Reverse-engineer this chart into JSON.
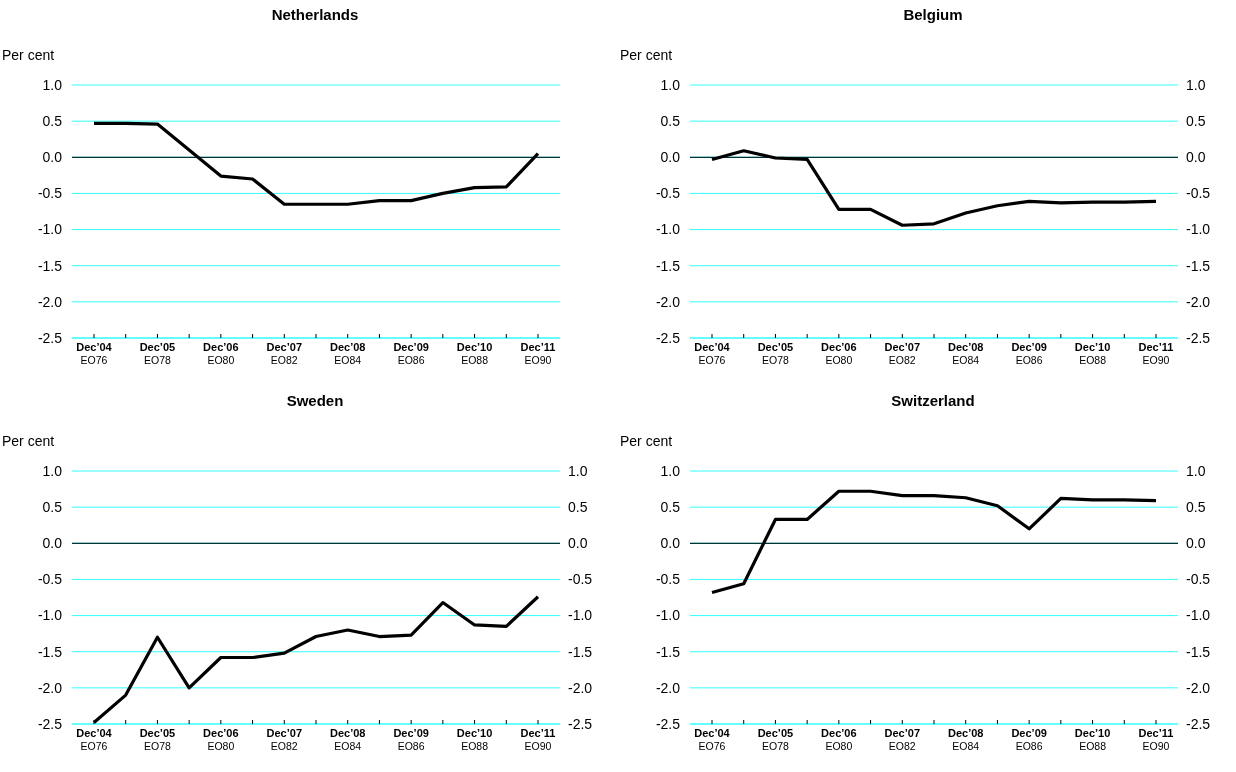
{
  "chart_data": [
    {
      "type": "line",
      "title": "Netherlands",
      "ylabel": "Per cent",
      "categories": [
        "Dec’04\nEO76",
        null,
        "Dec’05\nEO78",
        null,
        "Dec’06\nEO80",
        null,
        "Dec’07\nEO82",
        null,
        "Dec’08\nEO84",
        null,
        "Dec’09\nEO86",
        null,
        "Dec’10\nEO88",
        null,
        "Dec’11\nEO90"
      ],
      "series": [
        {
          "color": "#000000",
          "values": [
            0.47,
            0.47,
            0.46,
            0.1,
            -0.26,
            -0.3,
            -0.65,
            -0.65,
            -0.65,
            -0.6,
            -0.6,
            -0.5,
            -0.42,
            -0.41,
            0.05
          ]
        }
      ],
      "ylim": [
        -2.5,
        1.0
      ],
      "yticks": [
        {
          "value": -2.5,
          "label": "-2.5"
        },
        {
          "value": -2,
          "label": "-2.0"
        },
        {
          "value": -1.5,
          "label": "-1.5"
        },
        {
          "value": -1,
          "label": "-1.0"
        },
        {
          "value": -0.5,
          "label": "-0.5"
        },
        {
          "value": 0,
          "label": "0.0"
        },
        {
          "value": 0.5,
          "label": "0.5"
        },
        {
          "value": 1,
          "label": "1.0"
        }
      ],
      "grid": "y",
      "ref_lines": [
        {
          "axis": "y",
          "value": 0,
          "color": "#003333"
        }
      ]
    },
    {
      "type": "line",
      "title": "Belgium",
      "ylabel": "Per cent",
      "categories": [
        "Dec’04\nEO76",
        null,
        "Dec’05\nEO78",
        null,
        "Dec’06\nEO80",
        null,
        "Dec’07\nEO82",
        null,
        "Dec’08\nEO84",
        null,
        "Dec’09\nEO86",
        null,
        "Dec’10\nEO88",
        null,
        "Dec’11\nEO90"
      ],
      "series": [
        {
          "color": "#000000",
          "values": [
            -0.03,
            0.09,
            -0.01,
            -0.03,
            -0.72,
            -0.72,
            -0.94,
            -0.92,
            -0.77,
            -0.67,
            -0.61,
            -0.63,
            -0.62,
            -0.62,
            -0.61
          ]
        }
      ],
      "ylim": [
        -2.5,
        1.0
      ],
      "yticks": [
        {
          "value": -2.5,
          "label": "-2.5"
        },
        {
          "value": -2,
          "label": "-2.0"
        },
        {
          "value": -1.5,
          "label": "-1.5"
        },
        {
          "value": -1,
          "label": "-1.0"
        },
        {
          "value": -0.5,
          "label": "-0.5"
        },
        {
          "value": 0,
          "label": "0.0"
        },
        {
          "value": 0.5,
          "label": "0.5"
        },
        {
          "value": 1,
          "label": "1.0"
        }
      ],
      "y2lim": [
        -2.5,
        1.0
      ],
      "y2ticks": [
        {
          "value": -2.5,
          "label": "-2.5"
        },
        {
          "value": -2,
          "label": "-2.0"
        },
        {
          "value": -1.5,
          "label": "-1.5"
        },
        {
          "value": -1,
          "label": "-1.0"
        },
        {
          "value": -0.5,
          "label": "-0.5"
        },
        {
          "value": 0,
          "label": "0.0"
        },
        {
          "value": 0.5,
          "label": "0.5"
        },
        {
          "value": 1,
          "label": "1.0"
        }
      ],
      "grid": "y",
      "ref_lines": [
        {
          "axis": "y",
          "value": 0,
          "color": "#003333"
        }
      ]
    },
    {
      "type": "line",
      "title": "Sweden",
      "ylabel": "Per cent",
      "categories": [
        "Dec’04\nEO76",
        null,
        "Dec’05\nEO78",
        null,
        "Dec’06\nEO80",
        null,
        "Dec’07\nEO82",
        null,
        "Dec’08\nEO84",
        null,
        "Dec’09\nEO86",
        null,
        "Dec’10\nEO88",
        null,
        "Dec’11\nEO90"
      ],
      "series": [
        {
          "color": "#000000",
          "values": [
            -2.48,
            -2.1,
            -1.3,
            -2.0,
            -1.58,
            -1.58,
            -1.52,
            -1.29,
            -1.2,
            -1.29,
            -1.27,
            -0.82,
            -1.13,
            -1.15,
            -0.74
          ]
        }
      ],
      "ylim": [
        -2.5,
        1.0
      ],
      "yticks": [
        {
          "value": -2.5,
          "label": "-2.5"
        },
        {
          "value": -2,
          "label": "-2.0"
        },
        {
          "value": -1.5,
          "label": "-1.5"
        },
        {
          "value": -1,
          "label": "-1.0"
        },
        {
          "value": -0.5,
          "label": "-0.5"
        },
        {
          "value": 0,
          "label": "0.0"
        },
        {
          "value": 0.5,
          "label": "0.5"
        },
        {
          "value": 1,
          "label": "1.0"
        }
      ],
      "y2lim": [
        -2.5,
        1.0
      ],
      "y2ticks": [
        {
          "value": -2.5,
          "label": "-2.5"
        },
        {
          "value": -2,
          "label": "-2.0"
        },
        {
          "value": -1.5,
          "label": "-1.5"
        },
        {
          "value": -1,
          "label": "-1.0"
        },
        {
          "value": -0.5,
          "label": "-0.5"
        },
        {
          "value": 0,
          "label": "0.0"
        },
        {
          "value": 0.5,
          "label": "0.5"
        },
        {
          "value": 1,
          "label": "1.0"
        }
      ],
      "grid": "y",
      "ref_lines": [
        {
          "axis": "y",
          "value": 0,
          "color": "#003333"
        }
      ]
    },
    {
      "type": "line",
      "title": "Switzerland",
      "ylabel": "Per cent",
      "categories": [
        "Dec’04\nEO76",
        null,
        "Dec’05\nEO78",
        null,
        "Dec’06\nEO80",
        null,
        "Dec’07\nEO82",
        null,
        "Dec’08\nEO84",
        null,
        "Dec’09\nEO86",
        null,
        "Dec’10\nEO88",
        null,
        "Dec’11\nEO90"
      ],
      "series": [
        {
          "color": "#000000",
          "values": [
            -0.68,
            -0.56,
            0.33,
            0.33,
            0.72,
            0.72,
            0.66,
            0.66,
            0.63,
            0.52,
            0.2,
            0.62,
            0.6,
            0.6,
            0.59
          ]
        }
      ],
      "ylim": [
        -2.5,
        1.0
      ],
      "yticks": [
        {
          "value": -2.5,
          "label": "-2.5"
        },
        {
          "value": -2,
          "label": "-2.0"
        },
        {
          "value": -1.5,
          "label": "-1.5"
        },
        {
          "value": -1,
          "label": "-1.0"
        },
        {
          "value": -0.5,
          "label": "-0.5"
        },
        {
          "value": 0,
          "label": "0.0"
        },
        {
          "value": 0.5,
          "label": "0.5"
        },
        {
          "value": 1,
          "label": "1.0"
        }
      ],
      "y2lim": [
        -2.5,
        1.0
      ],
      "y2ticks": [
        {
          "value": -2.5,
          "label": "-2.5"
        },
        {
          "value": -2,
          "label": "-2.0"
        },
        {
          "value": -1.5,
          "label": "-1.5"
        },
        {
          "value": -1,
          "label": "-1.0"
        },
        {
          "value": -0.5,
          "label": "-0.5"
        },
        {
          "value": 0,
          "label": "0.0"
        },
        {
          "value": 0.5,
          "label": "0.5"
        },
        {
          "value": 1,
          "label": "1.0"
        }
      ],
      "grid": "y",
      "ref_lines": [
        {
          "axis": "y",
          "value": 0,
          "color": "#003333"
        }
      ]
    }
  ]
}
